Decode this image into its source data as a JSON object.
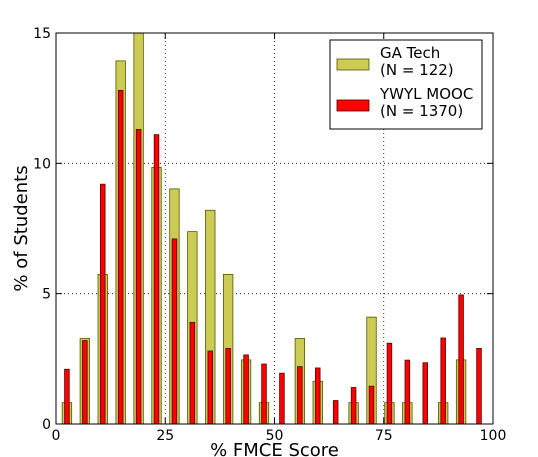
{
  "chart_data": {
    "type": "bar",
    "xlabel": "% FMCE Score",
    "ylabel": "% of Students",
    "xlim": [
      0,
      100
    ],
    "ylim": [
      0,
      15
    ],
    "xticks": [
      0,
      25,
      50,
      75,
      100
    ],
    "yticks": [
      0,
      5,
      10,
      15
    ],
    "grid": true,
    "legend_position": "top-right",
    "bin_width": 4.1,
    "x": [
      2.5,
      6.6,
      10.7,
      14.8,
      18.9,
      23.0,
      27.1,
      31.2,
      35.3,
      39.4,
      43.5,
      47.6,
      51.7,
      55.8,
      59.9,
      64.0,
      68.1,
      72.2,
      76.3,
      80.4,
      84.5,
      88.6,
      92.7,
      96.8
    ],
    "series": [
      {
        "name": "GA Tech\n(N = 122)",
        "color": "#cccc55",
        "edge": "#555500",
        "values": [
          0.82,
          3.28,
          5.74,
          13.93,
          15.0,
          9.84,
          9.02,
          7.38,
          8.2,
          5.74,
          2.46,
          0.82,
          0.0,
          3.28,
          1.64,
          0.0,
          0.82,
          4.1,
          0.82,
          0.82,
          0.0,
          0.82,
          2.46,
          0.0
        ]
      },
      {
        "name": "YWYL MOOC\n(N = 1370)",
        "color": "#ff0000",
        "edge": "#550000",
        "values": [
          2.1,
          3.2,
          9.2,
          12.8,
          11.3,
          11.1,
          7.1,
          3.9,
          2.8,
          2.9,
          2.65,
          2.3,
          1.95,
          2.2,
          2.15,
          0.9,
          1.4,
          1.45,
          3.1,
          2.45,
          2.35,
          3.3,
          4.95,
          2.9
        ]
      }
    ]
  }
}
